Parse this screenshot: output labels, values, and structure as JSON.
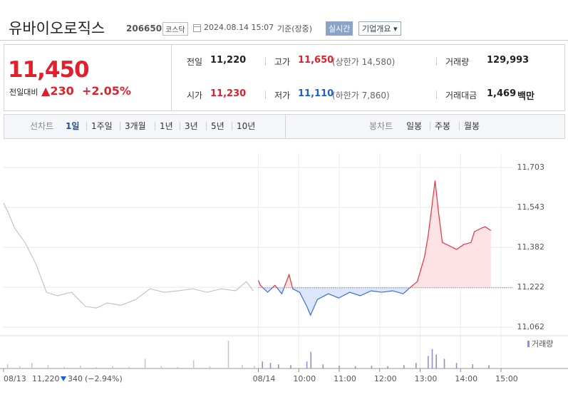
{
  "header": {
    "name": "유바이오로직스",
    "code": "206650",
    "market": "코스닥",
    "datetime": "2024.08.14 15:07",
    "basis": "기준(장중)",
    "realtime": "실시간",
    "company_info": "기업개요"
  },
  "summary": {
    "price": "11,450",
    "change_label": "전일대비",
    "change": "230",
    "change_pct": "+2.05%",
    "items": [
      {
        "label": "전일",
        "value": "11,220"
      },
      {
        "label": "고가",
        "value": "11,650",
        "sub": "(상한가 14,580)"
      },
      {
        "label": "거래량",
        "value": "129,993"
      },
      {
        "label": "시가",
        "value": "11,230"
      },
      {
        "label": "저가",
        "value": "11,110",
        "sub": "(하한가 7,860)"
      },
      {
        "label": "거래대금",
        "value": "1,469",
        "unit": "백만"
      }
    ]
  },
  "tabs": {
    "period_label": "선차트",
    "periods": [
      "1일",
      "1주일",
      "3개월",
      "1년",
      "3년",
      "5년",
      "10년"
    ],
    "candle_label": "봉차트",
    "candles": [
      "일봉",
      "주봉",
      "월봉"
    ]
  },
  "chart_data": {
    "type": "line",
    "xlim": [
      -6.3,
      6.3
    ],
    "xticks": [
      {
        "value": -6.3,
        "label": "08/13"
      },
      {
        "value": 0,
        "label": "08/14"
      },
      {
        "value": 1,
        "label": "10:00"
      },
      {
        "value": 2,
        "label": "11:00"
      },
      {
        "value": 3,
        "label": "12:00"
      },
      {
        "value": 4,
        "label": "13:00"
      },
      {
        "value": 5,
        "label": "14:00"
      },
      {
        "value": 6,
        "label": "15:00"
      }
    ],
    "ylim": [
      11042,
      11760
    ],
    "yticks": [
      {
        "value": 11062,
        "label": "11,062"
      },
      {
        "value": 11222,
        "label": "11,222"
      },
      {
        "value": 11382,
        "label": "11,382"
      },
      {
        "value": 11543,
        "label": "11,543"
      },
      {
        "value": 11703,
        "label": "11,703"
      }
    ],
    "grid": true,
    "baseline": 11220,
    "up_color": "#e8323c",
    "down_color": "#3c6fd1",
    "up_fill": "#fde3e5",
    "down_fill": "#dbe6fa",
    "series": [
      {
        "color": "#c4c4c4",
        "x": [
          -6.3,
          -6.17,
          -6.03,
          -5.77,
          -5.5,
          -5.24,
          -4.97,
          -4.62,
          -4.27,
          -4.0,
          -3.74,
          -3.39,
          -3.03,
          -2.68,
          -2.33,
          -1.98,
          -1.62,
          -1.27,
          -0.92,
          -0.56,
          -0.3,
          -0.12
        ],
        "values": [
          11560,
          11517,
          11460,
          11402,
          11316,
          11202,
          11188,
          11202,
          11145,
          11139,
          11159,
          11150,
          11173,
          11216,
          11202,
          11208,
          11216,
          11202,
          11216,
          11208,
          11245,
          11208
        ]
      },
      {
        "x": [
          0,
          0.05,
          0.14,
          0.23,
          0.41,
          0.58,
          0.76,
          0.85,
          1.02,
          1.2,
          1.29,
          1.46,
          1.73,
          1.99,
          2.26,
          2.52,
          2.79,
          3.05,
          3.32,
          3.58,
          3.76,
          3.93,
          4.11,
          4.2,
          4.29,
          4.37,
          4.46,
          4.55,
          4.73,
          4.9,
          5.08,
          5.26,
          5.34,
          5.52,
          5.61,
          5.75
        ],
        "values": [
          11250,
          11230,
          11216,
          11202,
          11230,
          11196,
          11273,
          11216,
          11202,
          11145,
          11110,
          11173,
          11196,
          11179,
          11202,
          11188,
          11208,
          11202,
          11208,
          11196,
          11222,
          11245,
          11345,
          11431,
          11545,
          11650,
          11517,
          11402,
          11388,
          11374,
          11394,
          11402,
          11445,
          11460,
          11465,
          11450
        ]
      }
    ],
    "volume": {
      "name": "거래량",
      "ylim": [
        0,
        100
      ],
      "prev_color": "#c8c8c8",
      "color": "#9a8cc4",
      "prev_x": [
        -6.2,
        -5.9,
        -5.6,
        -5.2,
        -4.8,
        -4.4,
        -4.0,
        -3.6,
        -3.2,
        -2.8,
        -2.4,
        -2.0,
        -1.6,
        -1.2,
        -0.74,
        -0.4,
        -0.1
      ],
      "prev_values": [
        15,
        8,
        20,
        12,
        6,
        10,
        5,
        8,
        6,
        35,
        9,
        5,
        30,
        8,
        100,
        12,
        10
      ],
      "x": [
        0.1,
        0.3,
        0.5,
        0.8,
        1.2,
        1.3,
        1.6,
        2.0,
        2.4,
        2.8,
        3.2,
        3.6,
        3.9,
        4.2,
        4.3,
        4.4,
        4.6,
        4.9,
        5.3,
        5.7
      ],
      "values": [
        25,
        20,
        15,
        12,
        25,
        60,
        15,
        10,
        8,
        10,
        8,
        12,
        20,
        45,
        70,
        50,
        35,
        20,
        15,
        12
      ]
    },
    "footer": {
      "value": "11,220",
      "change": "340",
      "pct": "(−2.94%)"
    }
  }
}
